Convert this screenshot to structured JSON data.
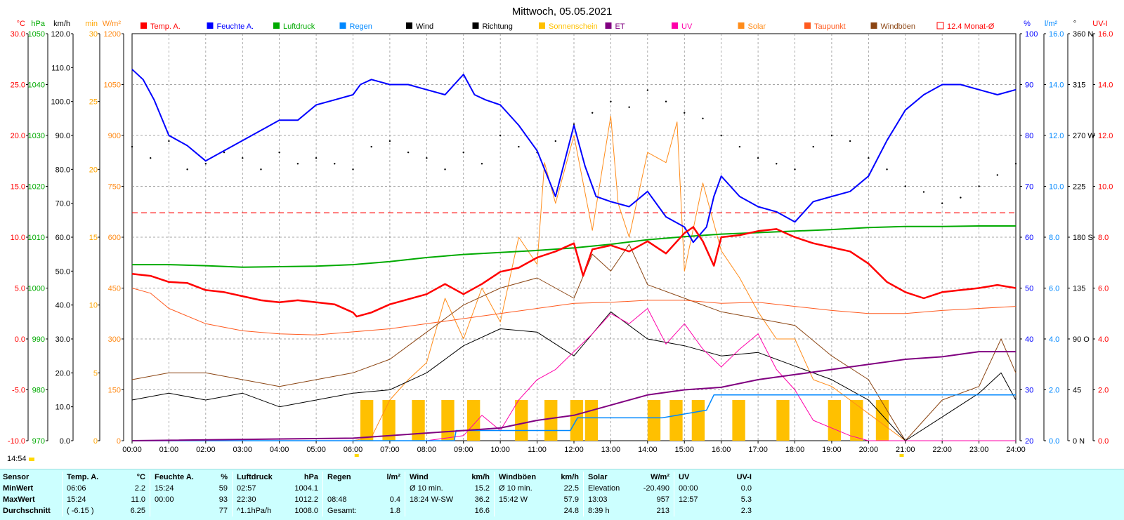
{
  "window": {
    "title": "Mittwoch, 05.05.2021"
  },
  "colors": {
    "temp": "#ff0000",
    "humidity": "#0000ff",
    "pressure": "#00aa00",
    "rain": "#0088ff",
    "wind": "#000000",
    "direction": "#000000",
    "sunshine": "#ffc000",
    "et": "#800080",
    "uv": "#ff00aa",
    "solar": "#ff8c1a",
    "dewpoint": "#ff5a1f",
    "gust": "#8b4513",
    "month_avg": "#ff0000",
    "grid": "#888888",
    "summary_bg": "#ccffff"
  },
  "legend": [
    {
      "label": "Temp. A.",
      "color": "#ff0000",
      "icon": "filled-square"
    },
    {
      "label": "Feuchte A.",
      "color": "#0000ff",
      "icon": "filled-square"
    },
    {
      "label": "Luftdruck",
      "color": "#00aa00",
      "icon": "filled-square"
    },
    {
      "label": "Regen",
      "color": "#0088ff",
      "icon": "filled-square"
    },
    {
      "label": "Wind",
      "color": "#000000",
      "icon": "filled-square"
    },
    {
      "label": "Richtung",
      "color": "#000000",
      "icon": "filled-square"
    },
    {
      "label": "Sonnenschein",
      "color": "#ffc000",
      "icon": "filled-square"
    },
    {
      "label": "ET",
      "color": "#800080",
      "icon": "filled-square"
    },
    {
      "label": "UV",
      "color": "#ff00aa",
      "icon": "filled-square"
    },
    {
      "label": "Solar",
      "color": "#ff8c1a",
      "icon": "filled-square"
    },
    {
      "label": "Taupunkt",
      "color": "#ff5a1f",
      "icon": "filled-square"
    },
    {
      "label": "Windböen",
      "color": "#8b4513",
      "icon": "filled-square"
    },
    {
      "label": "12.4 Monat-Ø",
      "color": "#ff0000",
      "icon": "outline-square"
    }
  ],
  "axes": {
    "left": [
      {
        "unit": "°C",
        "color": "#ff0000",
        "ticks": [
          "30.0",
          "25.0",
          "20.0",
          "15.0",
          "10.0",
          "5.0",
          "0.0",
          "-5.0",
          "-10.0"
        ]
      },
      {
        "unit": "hPa",
        "color": "#00aa00",
        "ticks": [
          "1050",
          "1040",
          "1030",
          "1020",
          "1010",
          "1000",
          "990",
          "980",
          "970"
        ]
      },
      {
        "unit": "km/h",
        "color": "#000000",
        "ticks": [
          "120.0",
          "110.0",
          "100.0",
          "90.0",
          "80.0",
          "70.0",
          "60.0",
          "50.0",
          "40.0",
          "30.0",
          "20.0",
          "10.0",
          "0.0"
        ]
      },
      {
        "unit": "min",
        "color": "#ffa500",
        "ticks": [
          "30",
          "25",
          "20",
          "15",
          "10",
          "5",
          "0"
        ]
      },
      {
        "unit": "W/m²",
        "color": "#ff8c1a",
        "ticks": [
          "1200",
          "1050",
          "900",
          "750",
          "600",
          "450",
          "300",
          "150",
          "0"
        ]
      }
    ],
    "right": [
      {
        "unit": "%",
        "color": "#0000ff",
        "ticks": [
          "100",
          "90",
          "80",
          "70",
          "60",
          "50",
          "40",
          "30",
          "20"
        ]
      },
      {
        "unit": "l/m²",
        "color": "#0088ff",
        "ticks": [
          "16.0",
          "14.0",
          "12.0",
          "10.0",
          "8.0",
          "6.0",
          "4.0",
          "2.0",
          "0.0"
        ]
      },
      {
        "unit": "°",
        "color": "#000000",
        "ticks": [
          "360 N",
          "315",
          "270 W",
          "225",
          "180 S",
          "135",
          "90 O",
          "45",
          "0 N"
        ]
      },
      {
        "unit": "UV-I",
        "color": "#ff0000",
        "ticks": [
          "16.0",
          "14.0",
          "12.0",
          "10.0",
          "8.0",
          "6.0",
          "4.0",
          "2.0",
          "0.0"
        ]
      }
    ],
    "x_ticks": [
      "00:00",
      "01:00",
      "02:00",
      "03:00",
      "04:00",
      "05:00",
      "06:00",
      "07:00",
      "08:00",
      "09:00",
      "10:00",
      "11:00",
      "12:00",
      "13:00",
      "14:00",
      "15:00",
      "16:00",
      "17:00",
      "18:00",
      "19:00",
      "20:00",
      "21:00",
      "22:00",
      "23:00",
      "24:00"
    ]
  },
  "current_time": "14:54",
  "chart_data": {
    "type": "line",
    "title": "Mittwoch, 05.05.2021",
    "x_unit": "hours",
    "x_range": [
      0,
      24
    ],
    "grid": true,
    "month_average_temp": 12.4,
    "series": [
      {
        "name": "Temp. A.",
        "unit": "°C",
        "range": [
          -10,
          30
        ],
        "x": [
          0,
          0.5,
          1,
          1.5,
          2,
          2.5,
          3,
          3.5,
          4,
          4.5,
          5,
          5.5,
          6,
          6.1,
          6.5,
          7,
          7.5,
          8,
          8.5,
          9,
          9.5,
          10,
          10.5,
          11,
          11.5,
          12,
          12.25,
          12.5,
          13,
          13.5,
          14,
          14.5,
          15,
          15.24,
          15.5,
          15.8,
          16,
          16.5,
          17,
          17.5,
          18,
          18.5,
          19,
          19.5,
          20,
          20.5,
          21,
          21.5,
          22,
          22.5,
          23,
          23.5,
          24
        ],
        "y": [
          6.4,
          6.2,
          5.6,
          5.5,
          4.8,
          4.6,
          4.2,
          3.8,
          3.6,
          3.8,
          3.6,
          3.4,
          2.6,
          2.2,
          2.6,
          3.4,
          3.9,
          4.4,
          5.4,
          4.4,
          5.4,
          6.6,
          7.0,
          8.0,
          8.6,
          9.4,
          6.2,
          8.8,
          9.2,
          8.6,
          9.6,
          8.4,
          10.4,
          11.0,
          9.6,
          7.2,
          10.0,
          10.2,
          10.6,
          10.8,
          10.0,
          9.4,
          9.0,
          8.6,
          7.4,
          5.6,
          4.6,
          4.0,
          4.6,
          4.8,
          5.0,
          5.3,
          5.0
        ]
      },
      {
        "name": "Feuchte A.",
        "unit": "%",
        "range": [
          20,
          100
        ],
        "x": [
          0,
          0.3,
          0.6,
          1,
          1.5,
          2,
          2.5,
          3,
          3.5,
          4,
          4.5,
          5,
          5.5,
          6,
          6.2,
          6.5,
          7,
          7.5,
          8,
          8.5,
          9,
          9.3,
          9.6,
          10,
          10.5,
          11,
          11.5,
          12,
          12.3,
          12.6,
          13,
          13.5,
          14,
          14.5,
          15,
          15.24,
          15.6,
          15.8,
          16,
          16.5,
          17,
          17.5,
          18,
          18.5,
          19,
          19.5,
          20,
          20.5,
          21,
          21.5,
          22,
          22.5,
          23,
          23.5,
          24
        ],
        "y": [
          93,
          91,
          87,
          80,
          78,
          75,
          77,
          79,
          81,
          83,
          83,
          86,
          87,
          88,
          90,
          91,
          90,
          90,
          89,
          88,
          92,
          88,
          87,
          86,
          82,
          77,
          68,
          82,
          74,
          68,
          67,
          66,
          69,
          64,
          62,
          59,
          62,
          68,
          72,
          68,
          66,
          65,
          63,
          67,
          68,
          69,
          72,
          79,
          85,
          88,
          90,
          90,
          89,
          88,
          89
        ]
      },
      {
        "name": "Luftdruck",
        "unit": "hPa",
        "range": [
          970,
          1050
        ],
        "x": [
          0,
          1,
          2,
          3,
          4,
          5,
          6,
          7,
          8,
          9,
          10,
          11,
          12,
          13,
          14,
          15,
          16,
          17,
          18,
          19,
          20,
          21,
          22,
          23,
          24
        ],
        "y": [
          1004.6,
          1004.6,
          1004.4,
          1004.1,
          1004.2,
          1004.3,
          1004.6,
          1005.2,
          1006.0,
          1006.6,
          1007.0,
          1007.4,
          1007.9,
          1008.6,
          1009.5,
          1010.1,
          1010.6,
          1010.9,
          1011.2,
          1011.5,
          1011.9,
          1012.1,
          1012.1,
          1012.2,
          1012.2
        ]
      },
      {
        "name": "Regen",
        "unit": "l/m²",
        "range": [
          0,
          16
        ],
        "x": [
          0,
          8.75,
          8.8,
          10.0,
          11.9,
          12.1,
          14.4,
          15.6,
          15.8,
          24
        ],
        "y": [
          0,
          0,
          0.4,
          0.4,
          0.4,
          0.9,
          0.9,
          1.2,
          1.8,
          1.8
        ]
      },
      {
        "name": "Wind",
        "unit": "km/h",
        "range": [
          0,
          120
        ],
        "x": [
          0,
          1,
          2,
          3,
          4,
          5,
          6,
          7,
          8,
          9,
          10,
          11,
          12,
          13,
          13.5,
          14,
          15,
          16,
          17,
          18,
          19,
          20,
          21,
          22,
          23,
          23.6,
          24
        ],
        "y": [
          12,
          14,
          12,
          14,
          10,
          12,
          14,
          15,
          20,
          28,
          33,
          32,
          25,
          38,
          34,
          30,
          28,
          25,
          26,
          22,
          18,
          12,
          0,
          7,
          14,
          20,
          12
        ]
      },
      {
        "name": "Sonnenschein",
        "unit": "min",
        "range": [
          0,
          30
        ],
        "x": [
          6.2,
          6.8,
          7.6,
          8.4,
          9.1,
          10.4,
          11.2,
          11.9,
          12.3,
          14.0,
          14.6,
          15.2,
          16.3,
          17.5,
          18.9,
          19.5,
          20.2
        ],
        "y": [
          3,
          3,
          3,
          3,
          3,
          3,
          3,
          3,
          3,
          3,
          3,
          3,
          3,
          3,
          3,
          3,
          3
        ]
      },
      {
        "name": "ET",
        "unit": "l/m²",
        "range": [
          0,
          16
        ],
        "x": [
          0,
          6,
          8,
          10,
          11,
          12,
          13,
          14,
          15,
          16,
          17,
          18,
          19,
          20,
          21,
          22,
          23,
          24
        ],
        "y": [
          0,
          0.1,
          0.3,
          0.5,
          0.8,
          1.0,
          1.4,
          1.8,
          2.0,
          2.1,
          2.4,
          2.6,
          2.8,
          3.0,
          3.2,
          3.3,
          3.5,
          3.5
        ]
      },
      {
        "name": "UV",
        "unit": "UV-I",
        "range": [
          0,
          16
        ],
        "x": [
          0,
          8,
          9,
          9.5,
          10,
          10.5,
          11,
          11.5,
          12,
          12.5,
          13,
          13.5,
          14,
          14.5,
          15,
          15.5,
          16,
          16.5,
          17,
          17.5,
          18,
          18.5,
          19,
          19.5,
          20,
          24
        ],
        "y": [
          0,
          0,
          0.2,
          1.0,
          0.4,
          1.6,
          2.4,
          2.8,
          3.5,
          4.2,
          5.0,
          4.6,
          5.2,
          3.8,
          4.6,
          3.6,
          2.9,
          3.6,
          4.2,
          2.8,
          2.0,
          0.8,
          0.5,
          0.2,
          0,
          0
        ]
      },
      {
        "name": "Solar",
        "unit": "W/m²",
        "range": [
          0,
          1200
        ],
        "x": [
          0,
          6,
          6.5,
          7,
          7.5,
          8,
          8.5,
          9,
          9.5,
          10,
          10.5,
          11,
          11.2,
          11.5,
          12,
          12.5,
          13,
          13.2,
          13.5,
          14,
          14.5,
          14.8,
          15,
          15.5,
          16,
          16.5,
          17,
          17.5,
          18,
          18.5,
          19,
          19.5,
          20,
          20.5,
          21,
          24
        ],
        "y": [
          0,
          0,
          10,
          120,
          180,
          230,
          420,
          300,
          450,
          350,
          600,
          520,
          820,
          700,
          900,
          620,
          957,
          700,
          600,
          850,
          820,
          940,
          500,
          760,
          560,
          480,
          380,
          300,
          300,
          180,
          160,
          120,
          80,
          40,
          0,
          0
        ]
      },
      {
        "name": "Taupunkt",
        "unit": "°C",
        "range": [
          -10,
          30
        ],
        "x": [
          0,
          0.5,
          1,
          2,
          3,
          4,
          5,
          6,
          7,
          8,
          9,
          10,
          11,
          12,
          13,
          14,
          15,
          16,
          17,
          18,
          19,
          20,
          21,
          22,
          23,
          24
        ],
        "y": [
          5.0,
          4.5,
          3.0,
          1.5,
          0.8,
          0.5,
          0.4,
          0.7,
          1.0,
          1.5,
          2.0,
          2.5,
          3.0,
          3.5,
          3.6,
          3.8,
          3.8,
          3.5,
          3.6,
          3.2,
          2.8,
          2.5,
          2.5,
          2.8,
          3.0,
          3.2
        ]
      },
      {
        "name": "Windböen",
        "unit": "km/h",
        "range": [
          0,
          120
        ],
        "x": [
          0,
          1,
          2,
          3,
          4,
          5,
          6,
          7,
          8,
          9,
          10,
          11,
          12,
          12.5,
          13,
          13.5,
          14,
          15,
          16,
          17,
          18,
          19,
          20,
          21,
          22,
          23,
          23.6,
          24
        ],
        "y": [
          18,
          20,
          20,
          18,
          16,
          18,
          20,
          24,
          32,
          40,
          45,
          48,
          42,
          55,
          50,
          57.9,
          46,
          42,
          38,
          36,
          34,
          25,
          18,
          0,
          12,
          16,
          30,
          20
        ]
      }
    ],
    "direction_points": {
      "name": "Richtung",
      "unit": "°",
      "range": [
        0,
        360
      ],
      "x": [
        0,
        0.5,
        1,
        1.5,
        2,
        2.5,
        3,
        3.5,
        4,
        4.5,
        5,
        5.5,
        6,
        6.5,
        7,
        7.5,
        8,
        8.5,
        9,
        9.5,
        10,
        10.5,
        11,
        11.5,
        12,
        12.5,
        13,
        13.5,
        14,
        14.5,
        15,
        15.5,
        16,
        16.5,
        17,
        17.5,
        18,
        18.5,
        19,
        19.5,
        20,
        20.5,
        21,
        21.5,
        22,
        22.5,
        23,
        23.5,
        24
      ],
      "y": [
        260,
        250,
        265,
        240,
        245,
        255,
        250,
        240,
        255,
        245,
        250,
        245,
        240,
        260,
        265,
        255,
        250,
        240,
        255,
        245,
        270,
        260,
        255,
        265,
        280,
        290,
        300,
        295,
        310,
        300,
        290,
        285,
        270,
        260,
        250,
        245,
        240,
        260,
        270,
        265,
        250,
        240,
        225,
        220,
        210,
        215,
        225,
        235,
        245
      ]
    }
  },
  "summary": {
    "headers": {
      "sensor": "Sensor",
      "temp": "Temp. A.",
      "temp_unit": "°C",
      "hum": "Feuchte A.",
      "hum_unit": "%",
      "press": "Luftdruck",
      "press_unit": "hPa",
      "rain": "Regen",
      "rain_unit": "l/m²",
      "wind": "Wind",
      "wind_unit": "km/h",
      "gust": "Windböen",
      "gust_unit": "km/h",
      "solar": "Solar",
      "solar_unit": "W/m²",
      "uv": "UV",
      "uv_unit": "UV-I"
    },
    "rows": [
      {
        "label": "MinWert",
        "temp_t": "06:06",
        "temp_v": "2.2",
        "hum_t": "15:24",
        "hum_v": "59",
        "press_t": "02:57",
        "press_v": "1004.1",
        "rain_t": "",
        "rain_v": "",
        "wind_t": "Ø 10 min.",
        "wind_v": "15.2",
        "gust_t": "Ø 10 min.",
        "gust_v": "22.5",
        "solar_t": "Elevation",
        "solar_v": "-20.490",
        "uv_t": "00:00",
        "uv_v": "0.0"
      },
      {
        "label": "MaxWert",
        "temp_t": "15:24",
        "temp_v": "11.0",
        "hum_t": "00:00",
        "hum_v": "93",
        "press_t": "22:30",
        "press_v": "1012.2",
        "rain_t": "08:48",
        "rain_v": "0.4",
        "wind_t": "18:24   W-SW",
        "wind_v": "36.2",
        "gust_t": "15:42      W",
        "gust_v": "57.9",
        "solar_t": "13:03",
        "solar_v": "957",
        "uv_t": "12:57",
        "uv_v": "5.3"
      },
      {
        "label": "Durchschnitt",
        "temp_t": "( -6.15 )",
        "temp_v": "6.25",
        "hum_t": "",
        "hum_v": "77",
        "press_t": "^1.1hPa/h",
        "press_v": "1008.0",
        "rain_t": "Gesamt:",
        "rain_v": "1.8",
        "wind_t": "",
        "wind_v": "16.6",
        "gust_t": "",
        "gust_v": "24.8",
        "solar_t": "8:39 h",
        "solar_v": "213",
        "uv_t": "",
        "uv_v": "2.3"
      }
    ]
  }
}
